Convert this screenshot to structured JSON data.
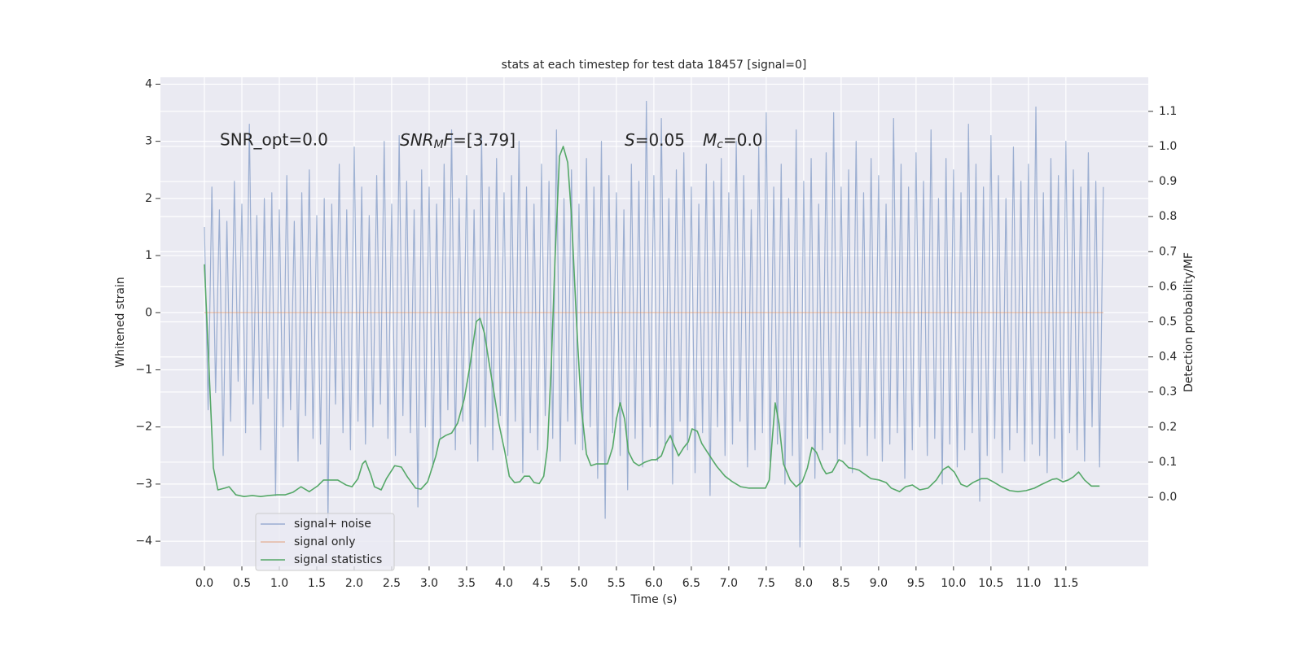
{
  "chart_data": {
    "type": "line",
    "title": "stats at each timestep for test data 18457 [signal=0]",
    "xlabel": "Time (s)",
    "ylabel": "Whitened strain",
    "y2label": "Detection probability/MF",
    "annotations": [
      "SNR_opt=0.0",
      [
        "SNR",
        "M",
        "F",
        "=[3.79]"
      ],
      [
        "S",
        "=0.05",
        "M",
        "c",
        "=0.0"
      ]
    ],
    "grid": true,
    "legend": "lower left",
    "background": "#eaeaf2",
    "xlim": [
      -0.587,
      12.6
    ],
    "ylim": [
      -4.44,
      4.12
    ],
    "y2lim": [
      -0.197,
      1.197
    ],
    "xticks": [
      {
        "value": 0,
        "label": "0.0"
      },
      0.5,
      {
        "value": 1,
        "label": "1.0"
      },
      1.5,
      {
        "value": 2,
        "label": "2.0"
      },
      2.5,
      {
        "value": 3,
        "label": "3.0"
      },
      3.5,
      {
        "value": 4,
        "label": "4.0"
      },
      4.5,
      {
        "value": 5,
        "label": "5.0"
      },
      5.5,
      {
        "value": 6,
        "label": "6.0"
      },
      6.5,
      {
        "value": 7,
        "label": "7.0"
      },
      7.5,
      {
        "value": 8,
        "label": "8.0"
      },
      8.5,
      {
        "value": 9,
        "label": "9.0"
      },
      9.5,
      {
        "value": 10,
        "label": "10.0"
      },
      10.5,
      {
        "value": 11,
        "label": "11.0"
      },
      11.5
    ],
    "yticks": [
      {
        "value": -4,
        "label": "−4"
      },
      {
        "value": -3,
        "label": "−3"
      },
      {
        "value": -2,
        "label": "−2"
      },
      {
        "value": -1,
        "label": "−1"
      },
      0,
      1,
      2,
      3,
      4
    ],
    "y2ticks": [
      {
        "value": 0,
        "label": "0.0"
      },
      0.1,
      0.2,
      0.3,
      0.4,
      0.5,
      0.6,
      0.7,
      0.8,
      0.9,
      {
        "value": 1,
        "label": "1.0"
      },
      1.1
    ],
    "series": [
      {
        "name": "signal+ noise",
        "color": "#4c72b0",
        "alpha": 0.5,
        "x": [
          0,
          0.05,
          0.1,
          0.15,
          0.2,
          0.25,
          0.3,
          0.35,
          0.4,
          0.45,
          0.5,
          0.55,
          0.6,
          0.65,
          0.7,
          0.75,
          0.8,
          0.85,
          0.9,
          0.95,
          1,
          1.05,
          1.1,
          1.15,
          1.2,
          1.25,
          1.3,
          1.35,
          1.4,
          1.45,
          1.5,
          1.55,
          1.6,
          1.65,
          1.7,
          1.75,
          1.8,
          1.85,
          1.9,
          1.95,
          2,
          2.05,
          2.1,
          2.15,
          2.2,
          2.25,
          2.3,
          2.35,
          2.4,
          2.45,
          2.5,
          2.55,
          2.6,
          2.65,
          2.7,
          2.75,
          2.8,
          2.85,
          2.9,
          2.95,
          3,
          3.05,
          3.1,
          3.15,
          3.2,
          3.25,
          3.3,
          3.35,
          3.4,
          3.45,
          3.5,
          3.55,
          3.6,
          3.65,
          3.7,
          3.75,
          3.8,
          3.85,
          3.9,
          3.95,
          4,
          4.05,
          4.1,
          4.15,
          4.2,
          4.25,
          4.3,
          4.35,
          4.4,
          4.45,
          4.5,
          4.55,
          4.6,
          4.65,
          4.7,
          4.75,
          4.8,
          4.85,
          4.9,
          4.95,
          5,
          5.05,
          5.1,
          5.15,
          5.2,
          5.25,
          5.3,
          5.35,
          5.4,
          5.45,
          5.5,
          5.55,
          5.6,
          5.65,
          5.7,
          5.75,
          5.8,
          5.85,
          5.9,
          5.95,
          6,
          6.05,
          6.1,
          6.15,
          6.2,
          6.25,
          6.3,
          6.35,
          6.4,
          6.45,
          6.5,
          6.55,
          6.6,
          6.65,
          6.7,
          6.75,
          6.8,
          6.85,
          6.9,
          6.95,
          7,
          7.05,
          7.1,
          7.15,
          7.2,
          7.25,
          7.3,
          7.35,
          7.4,
          7.45,
          7.5,
          7.55,
          7.6,
          7.65,
          7.7,
          7.75,
          7.8,
          7.85,
          7.9,
          7.95,
          8,
          8.05,
          8.1,
          8.15,
          8.2,
          8.25,
          8.3,
          8.35,
          8.4,
          8.45,
          8.5,
          8.55,
          8.6,
          8.65,
          8.7,
          8.75,
          8.8,
          8.85,
          8.9,
          8.95,
          9,
          9.05,
          9.1,
          9.15,
          9.2,
          9.25,
          9.3,
          9.35,
          9.4,
          9.45,
          9.5,
          9.55,
          9.6,
          9.65,
          9.7,
          9.75,
          9.8,
          9.85,
          9.9,
          9.95,
          10,
          10.05,
          10.1,
          10.15,
          10.2,
          10.25,
          10.3,
          10.35,
          10.4,
          10.45,
          10.5,
          10.55,
          10.6,
          10.65,
          10.7,
          10.75,
          10.8,
          10.85,
          10.9,
          10.95,
          11,
          11.05,
          11.1,
          11.15,
          11.2,
          11.25,
          11.3,
          11.35,
          11.4,
          11.45,
          11.5,
          11.55,
          11.6,
          11.65,
          11.7,
          11.75,
          11.8,
          11.85,
          11.9,
          11.95,
          12
        ],
        "values": [
          1.5,
          -1.7,
          2.2,
          -1.4,
          1.8,
          -2.5,
          1.6,
          -1.9,
          2.3,
          -1.2,
          1.9,
          -2.1,
          3.3,
          -1.6,
          1.7,
          -2.4,
          2.0,
          -1.5,
          2.1,
          -3.2,
          1.8,
          -2.0,
          2.4,
          -1.7,
          1.6,
          -2.6,
          2.1,
          -1.8,
          2.5,
          -2.2,
          1.7,
          -2.3,
          2.0,
          -3.6,
          1.9,
          -1.6,
          2.6,
          -2.1,
          1.8,
          -2.4,
          2.9,
          -1.9,
          2.2,
          -2.3,
          1.7,
          -2.0,
          2.4,
          -1.6,
          3.0,
          -2.2,
          1.9,
          -2.5,
          3.1,
          -1.8,
          2.3,
          -2.1,
          1.8,
          -3.4,
          2.5,
          -2.0,
          2.2,
          -2.7,
          1.9,
          -2.2,
          2.6,
          -1.7,
          3.2,
          -2.4,
          2.0,
          -1.9,
          2.4,
          -2.3,
          1.8,
          -2.6,
          3.1,
          -2.0,
          2.2,
          -2.4,
          2.7,
          -1.8,
          2.1,
          -2.5,
          2.4,
          -1.9,
          3.0,
          -2.8,
          2.2,
          -2.1,
          1.9,
          -2.4,
          2.6,
          -1.8,
          2.3,
          -2.2,
          3.2,
          -2.6,
          2.0,
          -1.9,
          2.5,
          -2.3,
          1.9,
          -2.4,
          2.7,
          -2.0,
          2.2,
          -2.9,
          3.0,
          -3.6,
          2.4,
          -2.1,
          2.1,
          -2.5,
          1.8,
          -3.1,
          2.6,
          -2.2,
          2.3,
          -2.7,
          3.7,
          -2.0,
          2.4,
          -2.6,
          3.4,
          -2.3,
          2.0,
          -3.0,
          2.5,
          -1.9,
          2.8,
          -2.4,
          2.2,
          -2.8,
          1.9,
          -2.1,
          2.6,
          -3.2,
          2.3,
          -2.0,
          2.7,
          -2.5,
          2.1,
          -2.3,
          3.0,
          -1.9,
          2.4,
          -2.7,
          1.8,
          -2.4,
          2.9,
          -2.1,
          3.5,
          -2.6,
          2.2,
          -2.3,
          2.6,
          -3.0,
          2.0,
          -2.5,
          3.2,
          -4.1,
          2.3,
          -2.2,
          2.7,
          -2.9,
          1.9,
          -2.4,
          2.8,
          -2.1,
          3.5,
          -2.6,
          2.2,
          -2.3,
          2.5,
          -2.8,
          3.0,
          -2.0,
          2.1,
          -2.5,
          2.7,
          -2.2,
          2.4,
          -2.6,
          1.9,
          -2.3,
          3.4,
          -2.1,
          2.6,
          -2.9,
          2.2,
          -2.4,
          2.8,
          -2.0,
          2.3,
          -2.5,
          3.2,
          -2.2,
          2.0,
          -3.0,
          2.7,
          -2.3,
          2.5,
          -2.7,
          2.1,
          -2.4,
          3.3,
          -2.1,
          2.6,
          -3.3,
          2.2,
          -2.5,
          3.1,
          -2.2,
          2.4,
          -2.8,
          2.0,
          -2.4,
          2.9,
          -2.1,
          2.3,
          -2.6,
          2.6,
          -2.3,
          3.6,
          -2.5,
          2.1,
          -2.8,
          2.7,
          -2.2,
          2.4,
          -2.9,
          3.0,
          -2.1,
          2.5,
          -2.4,
          2.2,
          -2.6,
          2.8,
          -2.0,
          2.3,
          -2.7,
          2.2
        ]
      },
      {
        "name": "signal only",
        "color": "#dd8452",
        "alpha": 0.5,
        "x": [
          0,
          12
        ],
        "values": [
          0,
          0
        ]
      },
      {
        "name": "signal statistics",
        "color": "#55a868",
        "axis": "y2",
        "x": [
          0.0,
          0.12,
          0.18,
          0.27,
          0.33,
          0.42,
          0.53,
          0.64,
          0.75,
          0.86,
          0.97,
          1.08,
          1.18,
          1.29,
          1.4,
          1.51,
          1.59,
          1.67,
          1.78,
          1.89,
          1.97,
          2.05,
          2.11,
          2.15,
          2.22,
          2.27,
          2.36,
          2.43,
          2.54,
          2.63,
          2.71,
          2.82,
          2.89,
          2.98,
          3.09,
          3.14,
          3.22,
          3.3,
          3.38,
          3.47,
          3.54,
          3.63,
          3.68,
          3.74,
          3.79,
          3.87,
          3.93,
          4.01,
          4.07,
          4.14,
          4.21,
          4.27,
          4.34,
          4.4,
          4.47,
          4.53,
          4.58,
          4.63,
          4.68,
          4.74,
          4.79,
          4.85,
          4.9,
          4.97,
          5.03,
          5.1,
          5.16,
          5.23,
          5.32,
          5.38,
          5.45,
          5.5,
          5.55,
          5.61,
          5.66,
          5.73,
          5.8,
          5.88,
          5.97,
          6.03,
          6.1,
          6.16,
          6.22,
          6.26,
          6.33,
          6.4,
          6.46,
          6.51,
          6.58,
          6.64,
          6.71,
          6.78,
          6.84,
          6.95,
          7.05,
          7.16,
          7.27,
          7.38,
          7.49,
          7.54,
          7.58,
          7.62,
          7.67,
          7.73,
          7.82,
          7.9,
          7.98,
          8.05,
          8.11,
          8.17,
          8.25,
          8.3,
          8.38,
          8.47,
          8.52,
          8.6,
          8.68,
          8.74,
          8.82,
          8.9,
          9.01,
          9.1,
          9.17,
          9.28,
          9.36,
          9.45,
          9.55,
          9.66,
          9.77,
          9.86,
          9.93,
          10.01,
          10.1,
          10.18,
          10.26,
          10.37,
          10.45,
          10.53,
          10.64,
          10.75,
          10.86,
          10.97,
          11.08,
          11.18,
          11.32,
          11.38,
          11.46,
          11.53,
          11.6,
          11.67,
          11.75,
          11.84,
          11.95
        ],
        "values": [
          0.664,
          0.084,
          0.021,
          0.026,
          0.03,
          0.007,
          0.002,
          0.005,
          0.002,
          0.005,
          0.007,
          0.007,
          0.014,
          0.03,
          0.016,
          0.032,
          0.049,
          0.049,
          0.049,
          0.035,
          0.03,
          0.053,
          0.095,
          0.104,
          0.065,
          0.03,
          0.021,
          0.053,
          0.09,
          0.086,
          0.058,
          0.026,
          0.023,
          0.044,
          0.118,
          0.165,
          0.176,
          0.183,
          0.211,
          0.281,
          0.369,
          0.501,
          0.51,
          0.466,
          0.397,
          0.292,
          0.211,
          0.13,
          0.06,
          0.042,
          0.044,
          0.06,
          0.06,
          0.042,
          0.039,
          0.06,
          0.142,
          0.374,
          0.675,
          0.972,
          1.0,
          0.954,
          0.803,
          0.49,
          0.258,
          0.123,
          0.09,
          0.095,
          0.095,
          0.095,
          0.142,
          0.223,
          0.269,
          0.223,
          0.13,
          0.1,
          0.09,
          0.1,
          0.107,
          0.107,
          0.118,
          0.153,
          0.176,
          0.153,
          0.118,
          0.142,
          0.158,
          0.195,
          0.188,
          0.153,
          0.13,
          0.107,
          0.088,
          0.06,
          0.044,
          0.03,
          0.026,
          0.026,
          0.026,
          0.049,
          0.165,
          0.269,
          0.211,
          0.095,
          0.049,
          0.03,
          0.044,
          0.084,
          0.142,
          0.128,
          0.084,
          0.067,
          0.072,
          0.107,
          0.102,
          0.084,
          0.081,
          0.077,
          0.065,
          0.053,
          0.049,
          0.042,
          0.026,
          0.016,
          0.03,
          0.035,
          0.021,
          0.026,
          0.049,
          0.079,
          0.088,
          0.072,
          0.037,
          0.03,
          0.042,
          0.053,
          0.053,
          0.044,
          0.03,
          0.019,
          0.016,
          0.019,
          0.026,
          0.037,
          0.051,
          0.053,
          0.044,
          0.049,
          0.058,
          0.072,
          0.049,
          0.032,
          0.032
        ]
      }
    ]
  }
}
